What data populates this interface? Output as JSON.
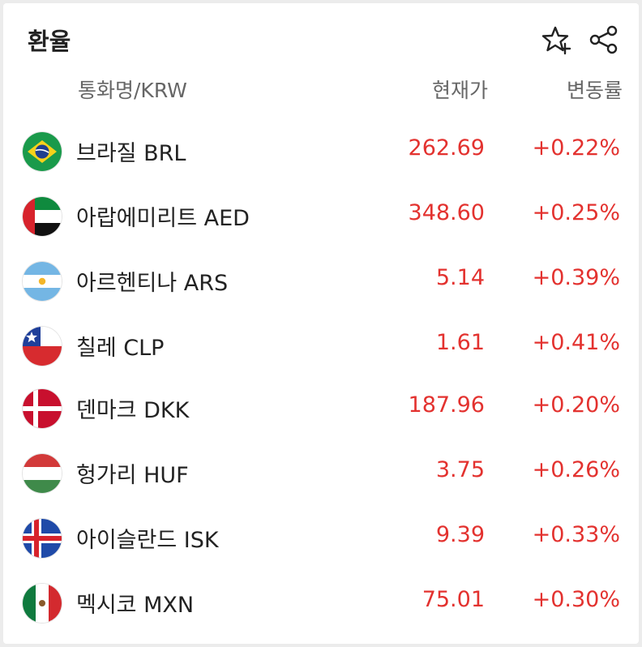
{
  "header": {
    "title": "환율",
    "favorite_icon": "star-plus-icon",
    "share_icon": "share-icon"
  },
  "columns": {
    "name": "통화명/KRW",
    "price": "현재가",
    "change": "변동률"
  },
  "rows": [
    {
      "name": "브라질 BRL",
      "price": "262.69",
      "change": "+0.22%",
      "flag": "brazil-flag-icon"
    },
    {
      "name": "아랍에미리트 AED",
      "price": "348.60",
      "change": "+0.25%",
      "flag": "uae-flag-icon"
    },
    {
      "name": "아르헨티나 ARS",
      "price": "5.14",
      "change": "+0.39%",
      "flag": "argentina-flag-icon"
    },
    {
      "name": "칠레 CLP",
      "price": "1.61",
      "change": "+0.41%",
      "flag": "chile-flag-icon"
    },
    {
      "name": "덴마크 DKK",
      "price": "187.96",
      "change": "+0.20%",
      "flag": "denmark-flag-icon"
    },
    {
      "name": "헝가리 HUF",
      "price": "3.75",
      "change": "+0.26%",
      "flag": "hungary-flag-icon"
    },
    {
      "name": "아이슬란드 ISK",
      "price": "9.39",
      "change": "+0.33%",
      "flag": "iceland-flag-icon"
    },
    {
      "name": "멕시코 MXN",
      "price": "75.01",
      "change": "+0.30%",
      "flag": "mexico-flag-icon"
    }
  ],
  "colors": {
    "up": "#e3322f",
    "text": "#222222",
    "muted": "#666666"
  }
}
